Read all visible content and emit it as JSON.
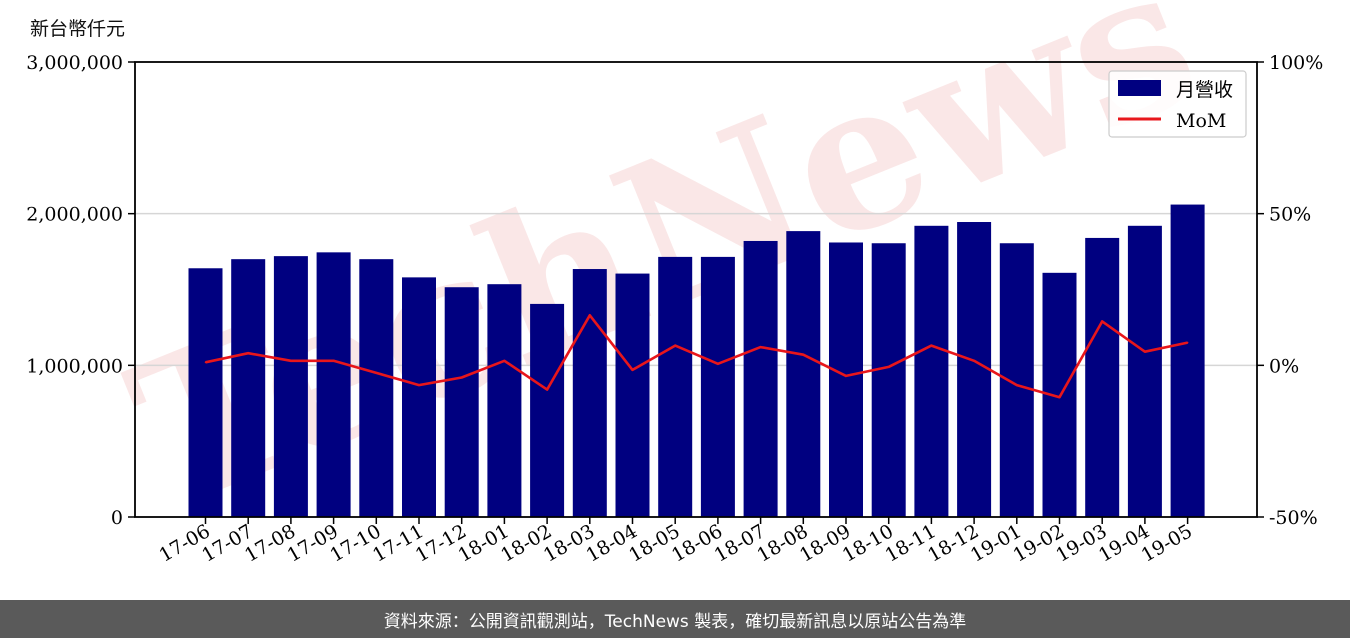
{
  "chart_data": {
    "type": "bar",
    "y_unit_label": "新台幣仟元",
    "categories": [
      "17-06",
      "17-07",
      "17-08",
      "17-09",
      "17-10",
      "17-11",
      "17-12",
      "18-01",
      "18-02",
      "18-03",
      "18-04",
      "18-05",
      "18-06",
      "18-07",
      "18-08",
      "18-09",
      "18-10",
      "18-11",
      "18-12",
      "19-01",
      "19-02",
      "19-03",
      "19-04",
      "19-05"
    ],
    "series": [
      {
        "name": "月營收",
        "type": "bar",
        "axis": "left",
        "color": "#000080",
        "values": [
          1640000,
          1700000,
          1720000,
          1745000,
          1700000,
          1580000,
          1515000,
          1535000,
          1405000,
          1635000,
          1605000,
          1715000,
          1715000,
          1820000,
          1885000,
          1810000,
          1805000,
          1920000,
          1945000,
          1805000,
          1610000,
          1840000,
          1920000,
          2060000
        ]
      },
      {
        "name": "MoM",
        "type": "line",
        "axis": "right",
        "color": "#e8161b",
        "values": [
          1.0,
          4.0,
          1.5,
          1.5,
          -2.5,
          -6.5,
          -4.0,
          1.5,
          -8.0,
          16.5,
          -1.5,
          6.5,
          0.5,
          6.0,
          3.5,
          -3.5,
          -0.5,
          6.5,
          1.5,
          -6.5,
          -10.5,
          14.5,
          4.5,
          7.5
        ]
      }
    ],
    "y_left": {
      "lim": [
        0,
        3000000
      ],
      "ticks": [
        0,
        1000000,
        2000000,
        3000000
      ],
      "tick_labels": [
        "0",
        "1,000,000",
        "2,000,000",
        "3,000,000"
      ]
    },
    "y_right": {
      "lim": [
        -50,
        100
      ],
      "ticks": [
        -50,
        0,
        50,
        100
      ],
      "tick_labels": [
        "-50%",
        "0%",
        "50%",
        "100%"
      ]
    },
    "grid": "horizontal",
    "legend": "top-right",
    "watermark": "TechNews"
  },
  "footer": {
    "source_text": "資料來源：公開資訊觀測站，TechNews 製表，確切最新訊息以原站公告為準"
  }
}
